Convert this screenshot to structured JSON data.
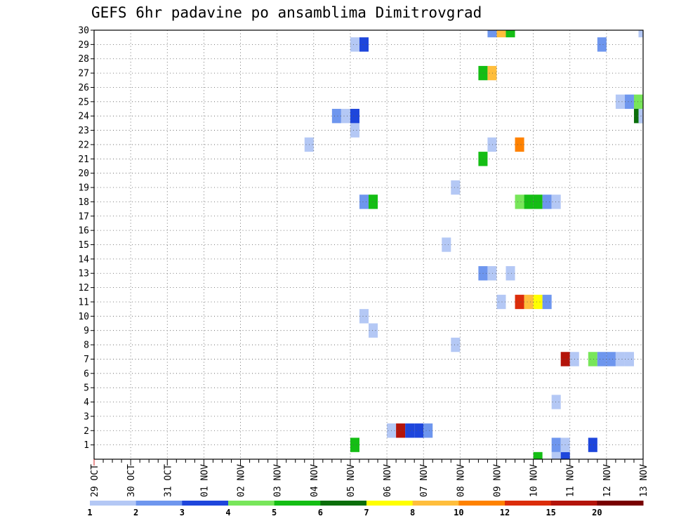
{
  "chart_data": {
    "type": "heatmap",
    "title": "GEFS 6hr padavine po ansamblima Dimitrovgrad",
    "x_tick_labels": [
      "29 OCT",
      "30 OCT",
      "31 OCT",
      "01 NOV",
      "02 NOV",
      "03 NOV",
      "04 NOV",
      "05 NOV",
      "06 NOV",
      "07 NOV",
      "08 NOV",
      "09 NOV",
      "10 NOV",
      "11 NOV",
      "12 NOV",
      "13 NOV"
    ],
    "y_tick_labels": [
      "1",
      "2",
      "3",
      "4",
      "5",
      "6",
      "7",
      "8",
      "9",
      "10",
      "11",
      "12",
      "13",
      "14",
      "15",
      "16",
      "17",
      "18",
      "19",
      "20",
      "21",
      "22",
      "23",
      "24",
      "25",
      "26",
      "27",
      "28",
      "29",
      "30"
    ],
    "x_range_days": [
      0,
      15
    ],
    "y_range_members": [
      0,
      30
    ],
    "time_step_hours": 6,
    "grid": true,
    "colorbar": {
      "labels": [
        "1",
        "2",
        "3",
        "4",
        "5",
        "6",
        "7",
        "8",
        "10",
        "12",
        "15",
        "20"
      ],
      "colors": [
        "#b4c8f5",
        "#6e96ee",
        "#1e46dc",
        "#78e65a",
        "#14be14",
        "#0a6e0a",
        "#ffff00",
        "#ffbe3c",
        "#ff8200",
        "#dc2d0a",
        "#b4140a",
        "#780000"
      ]
    },
    "cells": [
      {
        "member": 0,
        "t": 48.5,
        "c": 4
      },
      {
        "member": 0,
        "t": 50.5,
        "c": 0
      },
      {
        "member": 0,
        "t": 51.5,
        "c": 2
      },
      {
        "member": 1,
        "t": 28.5,
        "c": 4
      },
      {
        "member": 1,
        "t": 50.5,
        "c": 1
      },
      {
        "member": 1,
        "t": 51.5,
        "c": 0
      },
      {
        "member": 1,
        "t": 54.5,
        "c": 2
      },
      {
        "member": 2,
        "t": 32.5,
        "c": 0
      },
      {
        "member": 2,
        "t": 33.5,
        "c": 10
      },
      {
        "member": 2,
        "t": 34.5,
        "c": 2
      },
      {
        "member": 2,
        "t": 35.5,
        "c": 2
      },
      {
        "member": 2,
        "t": 36.5,
        "c": 1
      },
      {
        "member": 4,
        "t": 50.5,
        "c": 0
      },
      {
        "member": 7,
        "t": 51.5,
        "c": 10
      },
      {
        "member": 7,
        "t": 52.5,
        "c": 0
      },
      {
        "member": 7,
        "t": 54.5,
        "c": 3
      },
      {
        "member": 7,
        "t": 55.5,
        "c": 1
      },
      {
        "member": 7,
        "t": 56.5,
        "c": 1
      },
      {
        "member": 7,
        "t": 57.5,
        "c": 0
      },
      {
        "member": 7,
        "t": 58.5,
        "c": 0
      },
      {
        "member": 8,
        "t": 39.5,
        "c": 0
      },
      {
        "member": 9,
        "t": 30.5,
        "c": 0
      },
      {
        "member": 10,
        "t": 29.5,
        "c": 0
      },
      {
        "member": 11,
        "t": 44.5,
        "c": 0
      },
      {
        "member": 11,
        "t": 46.5,
        "c": 9
      },
      {
        "member": 11,
        "t": 47.5,
        "c": 7
      },
      {
        "member": 11,
        "t": 48.5,
        "c": 6
      },
      {
        "member": 11,
        "t": 49.5,
        "c": 1
      },
      {
        "member": 13,
        "t": 42.5,
        "c": 1
      },
      {
        "member": 13,
        "t": 43.5,
        "c": 0
      },
      {
        "member": 13,
        "t": 45.5,
        "c": 0
      },
      {
        "member": 15,
        "t": 38.5,
        "c": 0
      },
      {
        "member": 18,
        "t": 29.5,
        "c": 1
      },
      {
        "member": 18,
        "t": 30.5,
        "c": 4
      },
      {
        "member": 18,
        "t": 46.5,
        "c": 3
      },
      {
        "member": 18,
        "t": 47.5,
        "c": 4
      },
      {
        "member": 18,
        "t": 48.5,
        "c": 4
      },
      {
        "member": 18,
        "t": 49.5,
        "c": 1
      },
      {
        "member": 18,
        "t": 50.5,
        "c": 0
      },
      {
        "member": 19,
        "t": 39.5,
        "c": 0
      },
      {
        "member": 21,
        "t": 42.5,
        "c": 4
      },
      {
        "member": 22,
        "t": 23.5,
        "c": 0
      },
      {
        "member": 22,
        "t": 43.5,
        "c": 0
      },
      {
        "member": 22,
        "t": 46.5,
        "c": 8
      },
      {
        "member": 23,
        "t": 28.5,
        "c": 0
      },
      {
        "member": 24,
        "t": 26.5,
        "c": 1
      },
      {
        "member": 24,
        "t": 27.5,
        "c": 0
      },
      {
        "member": 24,
        "t": 28.5,
        "c": 2
      },
      {
        "member": 24,
        "t": 59.5,
        "c": 5
      },
      {
        "member": 24,
        "t": 60.0,
        "c": 0
      },
      {
        "member": 25,
        "t": 57.5,
        "c": 0
      },
      {
        "member": 25,
        "t": 58.5,
        "c": 1
      },
      {
        "member": 25,
        "t": 59.5,
        "c": 3
      },
      {
        "member": 27,
        "t": 42.5,
        "c": 4
      },
      {
        "member": 27,
        "t": 43.5,
        "c": 7
      },
      {
        "member": 29,
        "t": 28.5,
        "c": 0
      },
      {
        "member": 29,
        "t": 29.5,
        "c": 2
      },
      {
        "member": 29,
        "t": 55.5,
        "c": 1
      },
      {
        "member": 30,
        "t": 43.5,
        "c": 1
      },
      {
        "member": 30,
        "t": 44.5,
        "c": 7
      },
      {
        "member": 30,
        "t": 45.5,
        "c": 4
      },
      {
        "member": 30,
        "t": 60.0,
        "c": 0
      }
    ]
  }
}
